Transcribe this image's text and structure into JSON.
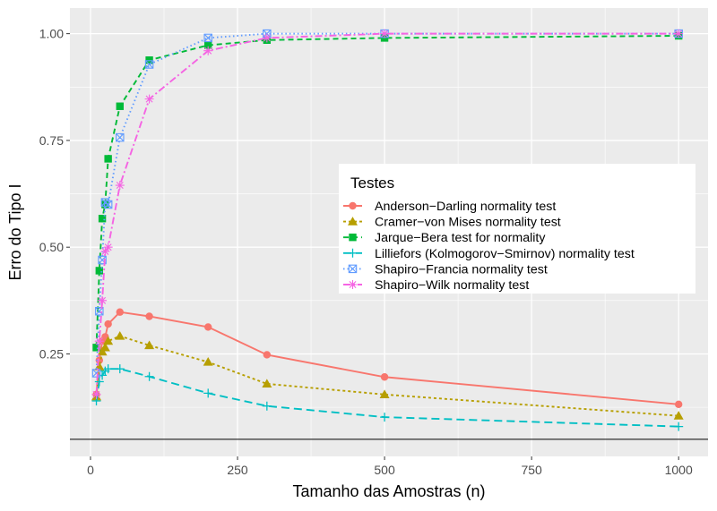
{
  "chart_data": {
    "type": "line",
    "title": "",
    "xlabel": "Tamanho das Amostras (n)",
    "ylabel": "Erro do Tipo I",
    "xlim": [
      -35,
      1050
    ],
    "ylim": [
      0.01,
      1.06
    ],
    "x_ticks": [
      0,
      250,
      500,
      750,
      1000
    ],
    "x_tick_labels": [
      "0",
      "250",
      "500",
      "750",
      "1000"
    ],
    "y_ticks": [
      0.25,
      0.5,
      0.75,
      1.0
    ],
    "y_tick_labels": [
      "0.25",
      "0.50",
      "0.75",
      "1.00"
    ],
    "reference_line": 0.05,
    "grid": true,
    "legend": {
      "title": "Testes",
      "position": "right"
    },
    "x": [
      10,
      15,
      20,
      25,
      30,
      50,
      100,
      200,
      300,
      500,
      1000
    ],
    "series": [
      {
        "name": "Anderson−Darling normality test",
        "color": "#F8766D",
        "marker": "circle",
        "dash": "solid",
        "values": [
          0.155,
          0.235,
          0.28,
          0.29,
          0.32,
          0.348,
          0.338,
          0.313,
          0.248,
          0.196,
          0.132
        ]
      },
      {
        "name": "Cramer−von Mises normality test",
        "color": "#B79F00",
        "marker": "triangle",
        "dash": "dotted",
        "values": [
          0.15,
          0.22,
          0.255,
          0.265,
          0.28,
          0.292,
          0.27,
          0.231,
          0.18,
          0.155,
          0.105
        ]
      },
      {
        "name": "Jarque−Bera test for normality",
        "color": "#00BA38",
        "marker": "square",
        "dash": "dashed",
        "values": [
          0.265,
          0.445,
          0.567,
          0.6,
          0.707,
          0.83,
          0.938,
          0.973,
          0.985,
          0.99,
          0.995
        ]
      },
      {
        "name": "Lilliefors (Kolmogorov−Smirnov) normality test",
        "color": "#00BFC4",
        "marker": "plus",
        "dash": "longdash",
        "values": [
          0.14,
          0.185,
          0.2,
          0.21,
          0.215,
          0.215,
          0.197,
          0.158,
          0.128,
          0.102,
          0.08
        ]
      },
      {
        "name": "Shapiro−Francia normality test",
        "color": "#619CFF",
        "marker": "square-x",
        "dash": "dotted-fine",
        "values": [
          0.205,
          0.35,
          0.47,
          0.605,
          0.6,
          0.757,
          0.928,
          0.99,
          1.0,
          1.0,
          1.0
        ]
      },
      {
        "name": "Shapiro−Wilk normality test",
        "color": "#F564E3",
        "marker": "asterisk",
        "dash": "dotdash",
        "values": [
          0.155,
          0.28,
          0.375,
          0.49,
          0.5,
          0.645,
          0.847,
          0.96,
          0.99,
          1.0,
          1.0
        ]
      }
    ]
  }
}
